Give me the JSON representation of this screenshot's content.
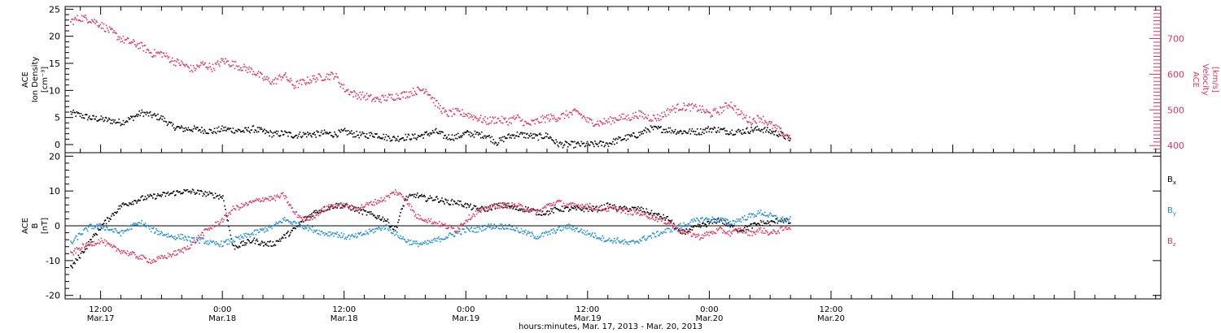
{
  "xlabel": "hours:minutes, Mar. 17, 2013 - Mar. 20, 2013",
  "colors": {
    "black": "#000000",
    "pink": "#e8335f",
    "blue": "#1f8fe0"
  },
  "chart_data": [
    {
      "type": "scatter",
      "panel": "top",
      "x_range_hours": [
        8.5,
        116.5
      ],
      "x_ticks": [
        {
          "hour": 12,
          "line1": "12:00",
          "line2": "Mar.17"
        },
        {
          "hour": 24,
          "line1": "0:00",
          "line2": "Mar.18"
        },
        {
          "hour": 36,
          "line1": "12:00",
          "line2": "Mar.18"
        },
        {
          "hour": 48,
          "line1": "0:00",
          "line2": "Mar.19"
        },
        {
          "hour": 60,
          "line1": "12:00",
          "line2": "Mar.19"
        },
        {
          "hour": 72,
          "line1": "0:00",
          "line2": "Mar.20"
        },
        {
          "hour": 84,
          "line1": "12:00",
          "line2": "Mar.20"
        }
      ],
      "left_axis": {
        "label_lines": [
          "ACE",
          "Ion Density",
          "[cm⁻³]"
        ],
        "ylim": [
          -1.5,
          25.5
        ],
        "ticks": [
          0,
          5,
          10,
          15,
          20,
          25
        ]
      },
      "right_axis": {
        "label_lines": [
          "ACE",
          "Velocity",
          "[km/s]"
        ],
        "ylim": [
          380,
          790
        ],
        "ticks": [
          400,
          500,
          600,
          700
        ]
      },
      "series": [
        {
          "axis": "left",
          "color": "#000000",
          "x": [
            9,
            10,
            11,
            12,
            13,
            14,
            15,
            16,
            17,
            18,
            19,
            20,
            21,
            22,
            23,
            24,
            25,
            26,
            27,
            28,
            29,
            30,
            31,
            32,
            33,
            34,
            35,
            36,
            37,
            38,
            39,
            40,
            41,
            42,
            43,
            44,
            45,
            46,
            47,
            48,
            49,
            50,
            51,
            52,
            53,
            54,
            55,
            56,
            57,
            58,
            59,
            60,
            61,
            62,
            63,
            64,
            65,
            66,
            67,
            68,
            69,
            70,
            71,
            72,
            73,
            74,
            75,
            76,
            77,
            78,
            79,
            80
          ],
          "y": [
            6,
            5.5,
            5,
            4.8,
            4.5,
            4.2,
            5,
            6,
            5.5,
            5,
            3.5,
            3,
            3,
            2.8,
            2.5,
            3,
            2.8,
            2.6,
            3,
            2.5,
            2,
            2.2,
            1.8,
            2,
            2,
            2.2,
            2,
            2.5,
            2,
            1.8,
            2,
            1.5,
            1.2,
            1.5,
            1.5,
            2,
            2.5,
            1.5,
            1.5,
            2.2,
            2,
            1.8,
            0.5,
            1.5,
            2,
            1.8,
            1.5,
            1.8,
            0.2,
            0.1,
            0.1,
            0.1,
            0.2,
            0.3,
            1,
            1.5,
            2,
            3,
            3,
            2.8,
            2.5,
            2.5,
            2.5,
            3,
            2.8,
            2.5,
            2.5,
            2.8,
            3,
            2.5,
            2,
            1
          ]
        },
        {
          "axis": "right",
          "color": "#e8335f",
          "x": [
            9,
            10,
            11,
            12,
            13,
            14,
            15,
            16,
            17,
            18,
            19,
            20,
            21,
            22,
            23,
            24,
            25,
            26,
            27,
            28,
            29,
            30,
            31,
            32,
            33,
            34,
            35,
            36,
            37,
            38,
            39,
            40,
            41,
            42,
            43,
            44,
            45,
            46,
            47,
            48,
            49,
            50,
            51,
            52,
            53,
            54,
            55,
            56,
            57,
            58,
            59,
            60,
            61,
            62,
            63,
            64,
            65,
            66,
            67,
            68,
            69,
            70,
            71,
            72,
            73,
            74,
            75,
            76,
            77,
            78,
            79,
            80
          ],
          "y": [
            750,
            760,
            755,
            740,
            720,
            700,
            690,
            680,
            660,
            660,
            640,
            630,
            615,
            630,
            620,
            640,
            630,
            620,
            610,
            590,
            580,
            600,
            570,
            580,
            590,
            595,
            600,
            560,
            545,
            540,
            530,
            535,
            540,
            545,
            555,
            560,
            520,
            490,
            495,
            490,
            480,
            470,
            475,
            470,
            480,
            460,
            470,
            480,
            480,
            490,
            495,
            470,
            465,
            470,
            480,
            480,
            490,
            480,
            480,
            500,
            510,
            510,
            505,
            490,
            500,
            520,
            490,
            470,
            480,
            460,
            440,
            420
          ]
        }
      ]
    },
    {
      "type": "scatter",
      "panel": "bottom",
      "x_range_hours": [
        8.5,
        116.5
      ],
      "left_axis": {
        "label_lines": [
          "ACE",
          "B",
          "[nT]"
        ],
        "ylim": [
          -21,
          21
        ],
        "ticks": [
          -20,
          -10,
          0,
          10,
          20
        ]
      },
      "legend": {
        "placement": "right",
        "entries": [
          {
            "label": "B",
            "sub": "x",
            "color": "#000000"
          },
          {
            "label": "B",
            "sub": "y",
            "color": "#1f8fe0"
          },
          {
            "label": "B",
            "sub": "z",
            "color": "#e8335f"
          }
        ]
      },
      "series": [
        {
          "name": "Bx",
          "color": "#000000",
          "x": [
            9,
            10,
            11,
            12,
            13,
            14,
            15,
            16,
            17,
            18,
            19,
            20,
            21,
            22,
            23,
            24,
            25,
            26,
            27,
            28,
            29,
            30,
            31,
            32,
            33,
            34,
            35,
            36,
            37,
            38,
            39,
            40,
            41,
            42,
            43,
            44,
            45,
            46,
            47,
            48,
            49,
            50,
            51,
            52,
            53,
            54,
            55,
            56,
            57,
            58,
            59,
            60,
            61,
            62,
            63,
            64,
            65,
            66,
            67,
            68,
            69,
            70,
            71,
            72,
            73,
            74,
            75,
            76,
            77,
            78,
            79,
            80
          ],
          "y": [
            -12,
            -8,
            -4,
            0,
            3,
            6,
            7,
            8,
            8.5,
            9,
            9.5,
            10,
            10,
            9.5,
            9,
            8.5,
            -6,
            -5,
            -4,
            -5,
            -5,
            -3,
            -1,
            2,
            4,
            5,
            6,
            6,
            5,
            4,
            3,
            2,
            -1,
            8,
            9,
            8,
            8,
            7,
            7,
            6,
            5,
            5,
            6,
            6,
            5,
            5,
            4,
            4,
            5,
            5,
            5,
            5,
            5,
            6,
            5,
            5,
            5,
            4,
            3,
            2,
            -2,
            -1,
            0,
            1,
            2,
            0,
            -1,
            0,
            1,
            1,
            2,
            1
          ]
        },
        {
          "name": "By",
          "color": "#1f8fe0",
          "x": [
            9,
            10,
            11,
            12,
            13,
            14,
            15,
            16,
            17,
            18,
            19,
            20,
            21,
            22,
            23,
            24,
            25,
            26,
            27,
            28,
            29,
            30,
            31,
            32,
            33,
            34,
            35,
            36,
            37,
            38,
            39,
            40,
            41,
            42,
            43,
            44,
            45,
            46,
            47,
            48,
            49,
            50,
            51,
            52,
            53,
            54,
            55,
            56,
            57,
            58,
            59,
            60,
            61,
            62,
            63,
            64,
            65,
            66,
            67,
            68,
            69,
            70,
            71,
            72,
            73,
            74,
            75,
            76,
            77,
            78,
            79,
            80
          ],
          "y": [
            -5,
            -2,
            0,
            0,
            -1,
            -2,
            0,
            1,
            -1,
            -2,
            -3,
            -3,
            -4,
            -4,
            -5,
            -5,
            -4,
            -3,
            -2,
            -1,
            0,
            2,
            1,
            0,
            -1,
            -2,
            -2,
            -3,
            -3,
            -2,
            -1,
            0,
            -2,
            -4,
            -5,
            -5,
            -4,
            -3,
            -2,
            -1,
            -1,
            0,
            0,
            0,
            -1,
            -2,
            -3,
            -2,
            -1,
            0,
            -1,
            -2,
            -3,
            -4,
            -4,
            -5,
            -4,
            -3,
            -2,
            -1,
            0,
            1,
            2,
            2,
            2,
            1,
            2,
            3,
            4,
            3,
            2,
            2
          ]
        },
        {
          "name": "Bz",
          "color": "#e8335f",
          "x": [
            9,
            10,
            11,
            12,
            13,
            14,
            15,
            16,
            17,
            18,
            19,
            20,
            21,
            22,
            23,
            24,
            25,
            26,
            27,
            28,
            29,
            30,
            31,
            32,
            33,
            34,
            35,
            36,
            37,
            38,
            39,
            40,
            41,
            42,
            43,
            44,
            45,
            46,
            47,
            48,
            49,
            50,
            51,
            52,
            53,
            54,
            55,
            56,
            57,
            58,
            59,
            60,
            61,
            62,
            63,
            64,
            65,
            66,
            67,
            68,
            69,
            70,
            71,
            72,
            73,
            74,
            75,
            76,
            77,
            78,
            79,
            80
          ],
          "y": [
            -8,
            -6,
            -5,
            -4,
            -6,
            -7,
            -8,
            -9,
            -10,
            -9,
            -8,
            -7,
            -5,
            -2,
            0,
            2,
            5,
            6,
            7,
            8,
            8,
            9,
            4,
            2,
            3,
            5,
            6,
            6,
            5,
            6,
            7,
            8,
            10,
            8,
            3,
            2,
            1,
            0,
            -1,
            2,
            4,
            5,
            6,
            6,
            6,
            5,
            4,
            6,
            7,
            6,
            6,
            6,
            5,
            5,
            5,
            4,
            4,
            3,
            2,
            1,
            -1,
            -2,
            -3,
            -2,
            -1,
            -2,
            -1,
            -2,
            -1,
            -2,
            -1,
            0
          ]
        }
      ]
    }
  ]
}
